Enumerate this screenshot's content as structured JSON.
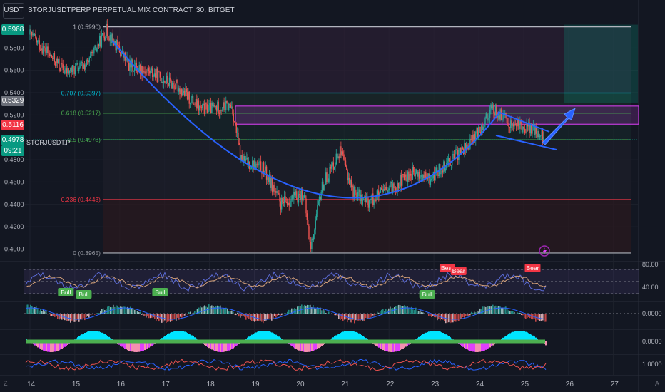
{
  "toolbar": {
    "currency_label": "USDT"
  },
  "header": {
    "title": "STORJUSDTPERP PERPETUAL MIX CONTRACT, 30, BITGET"
  },
  "price_axis": {
    "labels": [
      "0.5800",
      "0.5600",
      "0.5400",
      "0.5200",
      "0.4800",
      "0.4600",
      "0.4400",
      "0.4200",
      "0.4000"
    ],
    "values": [
      0.58,
      0.56,
      0.54,
      0.52,
      0.48,
      0.46,
      0.44,
      0.42,
      0.4
    ]
  },
  "price_tags": [
    {
      "text": "0.5968",
      "value": 0.5968,
      "color": "#089981"
    },
    {
      "text": "0.5329",
      "value": 0.5329,
      "color": "#6b6f79"
    },
    {
      "text": "0.5116",
      "value": 0.5116,
      "color": "#f23645"
    },
    {
      "text": "0.4978",
      "value": 0.4978,
      "color": "#089981"
    }
  ],
  "countdown": "09:21",
  "symbol_label": "STORJUSDT.P",
  "fib_levels": [
    {
      "label": "1 (0.5990)",
      "value": 0.599,
      "color": "#b2b5be"
    },
    {
      "label": "0.707 (0.5397)",
      "value": 0.5397,
      "color": "#00bcd4"
    },
    {
      "label": "0.618 (0.5217)",
      "value": 0.5217,
      "color": "#4caf50"
    },
    {
      "label": "0.5 (0.4978)",
      "value": 0.4978,
      "color": "#4caf50"
    },
    {
      "label": "0.236 (0.4443)",
      "value": 0.4443,
      "color": "#f23645"
    },
    {
      "label": "0 (0.3965)",
      "value": 0.3965,
      "color": "#9598a1"
    }
  ],
  "time_axis": [
    "14",
    "15",
    "16",
    "17",
    "18",
    "19",
    "20",
    "21",
    "22",
    "23",
    "24",
    "25",
    "26",
    "27"
  ],
  "oscillator_axis": [
    "80.00",
    "40.00"
  ],
  "oscillator_signals": [
    {
      "text": "Bull",
      "type": "bull",
      "x": 14.8
    },
    {
      "text": "Bull",
      "type": "bull",
      "x": 15.2
    },
    {
      "text": "Bull",
      "type": "bull",
      "x": 16.9
    },
    {
      "text": "Bull",
      "type": "bull",
      "x": 22.85
    },
    {
      "text": "Bear",
      "type": "bear",
      "x": 23.3
    },
    {
      "text": "Bear",
      "type": "bear",
      "x": 23.55
    },
    {
      "text": "Bear",
      "type": "bear",
      "x": 25.2
    }
  ],
  "momentum_axis": [
    "0.0000"
  ],
  "squeeze_axis": [
    "0.0000"
  ],
  "rsi_axis": [
    "1.0000"
  ],
  "corner_labels": {
    "left": "Z",
    "right": "A"
  },
  "colors": {
    "background": "#131722",
    "up": "#26a69a",
    "down": "#ef5350",
    "arc": "#2962ff",
    "target_zone": "#089981",
    "supply_zone": "#e040fb"
  },
  "chart_data": {
    "type": "candlestick",
    "timeframe": "30",
    "y_range": [
      0.392,
      0.6
    ],
    "x_range": [
      13.8,
      27.6
    ],
    "annotations": [
      "fib retracement 0.3965-0.5990",
      "rounded bottom arc",
      "descending channel",
      "projection arrow",
      "long position box"
    ]
  }
}
